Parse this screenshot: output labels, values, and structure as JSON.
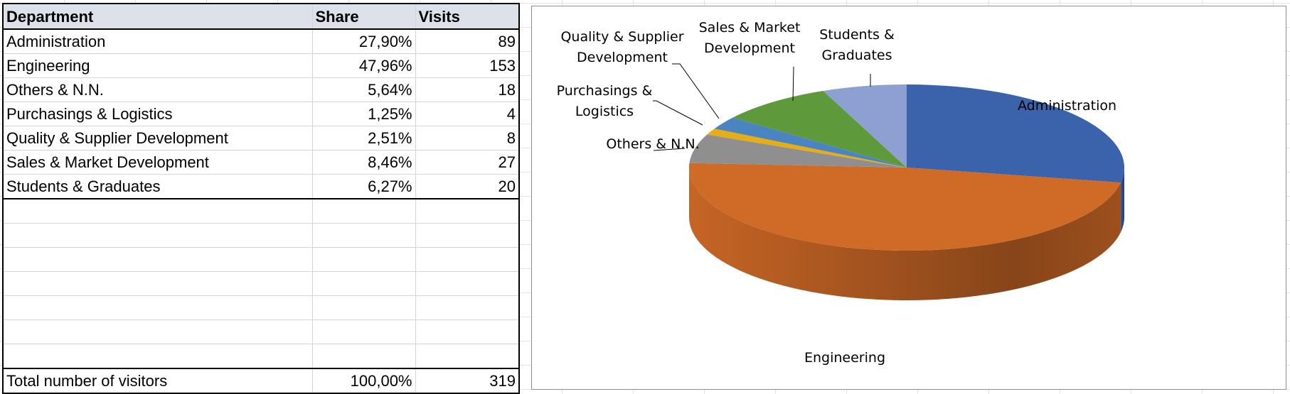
{
  "table": {
    "headers": [
      "Department",
      "Share",
      "Visits"
    ],
    "rows": [
      [
        "Administration",
        "27,90%",
        "89"
      ],
      [
        "Engineering",
        "47,96%",
        "153"
      ],
      [
        "Others & N.N.",
        "5,64%",
        "18"
      ],
      [
        "Purchasings & Logistics",
        "1,25%",
        "4"
      ],
      [
        "Quality & Supplier Development",
        "2,51%",
        "8"
      ],
      [
        "Sales & Market Development",
        "8,46%",
        "27"
      ],
      [
        "Students & Graduates",
        "6,27%",
        "20"
      ]
    ],
    "total": [
      "Total number of visitors",
      "100,00%",
      "319"
    ]
  },
  "chart_data": {
    "type": "pie",
    "title": "",
    "categories": [
      "Administration",
      "Engineering",
      "Others & N.N.",
      "Purchasings & Logistics",
      "Quality & Supplier Development",
      "Sales & Market Development",
      "Students & Graduates"
    ],
    "values": [
      89,
      153,
      18,
      4,
      8,
      27,
      20
    ],
    "colors": [
      "#3a63ac",
      "#d06a27",
      "#8f8f8f",
      "#e6ad14",
      "#4a85c2",
      "#5e9a3c",
      "#8ea0d2"
    ],
    "side_colors": [
      "#24437a",
      "#8a431a",
      "#5f5f5f",
      "#9c740a",
      "#2f5c8a",
      "#3d6a25",
      "#5d6d9a"
    ],
    "labels": [
      [
        "Administration"
      ],
      [
        "Engineering"
      ],
      [
        "Others & N.N."
      ],
      [
        "Purchasings &",
        "Logistics"
      ],
      [
        "Quality & Supplier",
        "Development"
      ],
      [
        "Sales & Market",
        "Development"
      ],
      [
        "Students &",
        "Graduates"
      ]
    ],
    "legend": "none",
    "style": "3d"
  }
}
